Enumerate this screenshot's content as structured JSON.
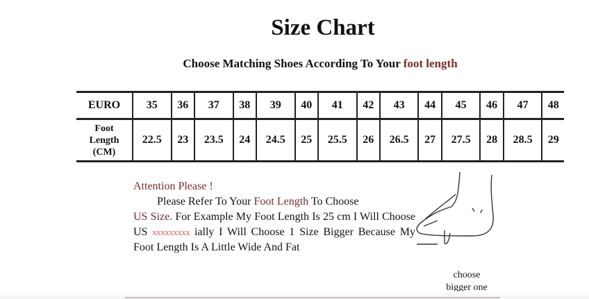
{
  "title": "Size Chart",
  "subtitle": {
    "prefix": "Choose Matching Shoes According To Your ",
    "highlight": "foot length"
  },
  "table": {
    "row1_header": "EURO",
    "row2_header": [
      "Foot",
      "Length",
      "(CM)"
    ],
    "euro": [
      "35",
      "36",
      "37",
      "38",
      "39",
      "40",
      "41",
      "42",
      "43",
      "44",
      "45",
      "46",
      "47",
      "48"
    ],
    "foot_length_cm": [
      "22.5",
      "23",
      "23.5",
      "24",
      "24.5",
      "25",
      "25.5",
      "26",
      "26.5",
      "27",
      "27.5",
      "28",
      "28.5",
      "29"
    ]
  },
  "note": {
    "heading": "Attention Please !",
    "l1a": "Please Refer To Your ",
    "l1b": "Foot Length",
    "l1c": " To Choose",
    "l2a": "US Size.",
    "l2b": " For Example My Foot Length Is 25 cm I Will Choose US ",
    "l2x": "xxxxxxxxx",
    "l2c": " ially I Will Choose 1 Size Bigger Because My Foot Length Is A Little Wide And Fat"
  },
  "caption": [
    "choose",
    "bigger one"
  ],
  "colors": {
    "highlight": "#7a2a2a",
    "redacted": "#e05a5a"
  }
}
